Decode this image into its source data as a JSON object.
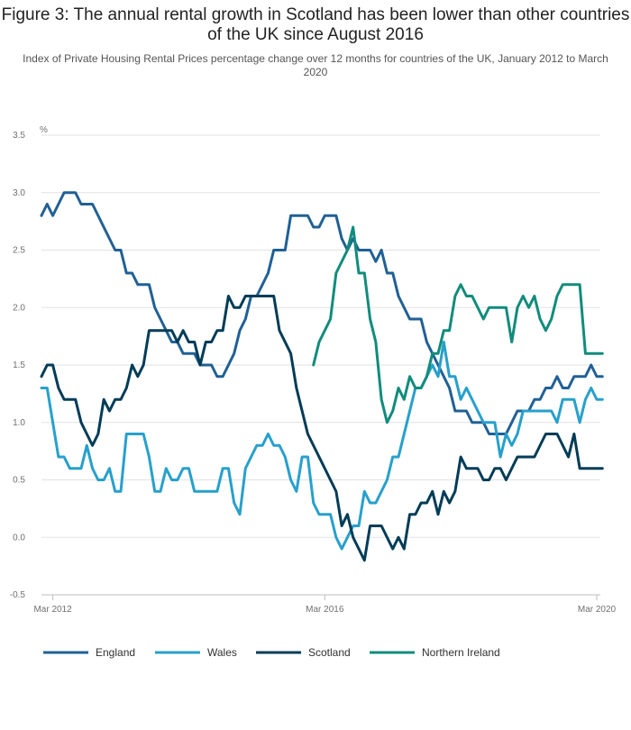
{
  "title": "Figure 3: The annual rental growth in Scotland has been lower than other countries of the UK since August 2016",
  "subtitle": "Index of Private Housing Rental Prices percentage change over 12 months for countries of the UK, January 2012 to March 2020",
  "chart_data": {
    "type": "line",
    "title": "Figure 3: The annual rental growth in Scotland has been lower than other countries of the UK since August 2016",
    "subtitle": "Index of Private Housing Rental Prices percentage change over 12 months for countries of the UK, January 2012 to March 2020",
    "ylabel": "%",
    "ylim": [
      -0.5,
      3.5
    ],
    "yticks": [
      -0.5,
      0,
      0.5,
      1,
      1.5,
      2,
      2.5,
      3,
      3.5
    ],
    "ytick_labels": [
      "-0.5",
      "0.0",
      "0.5",
      "1.0",
      "1.5",
      "2.0",
      "2.5",
      "3.0",
      "3.5"
    ],
    "x_start": "Jan 2012",
    "x_ticks": [
      {
        "label": "Mar 2012",
        "index": 2
      },
      {
        "label": "Mar 2016",
        "index": 50
      },
      {
        "label": "Mar 2020",
        "index": 98
      }
    ],
    "grid": "horizontal",
    "legend_position": "bottom",
    "series": [
      {
        "name": "England",
        "color": "#206095",
        "values": [
          2.8,
          2.9,
          2.8,
          2.9,
          3.0,
          3.0,
          3.0,
          2.9,
          2.9,
          2.9,
          2.8,
          2.7,
          2.6,
          2.5,
          2.5,
          2.3,
          2.3,
          2.2,
          2.2,
          2.2,
          2.0,
          1.9,
          1.8,
          1.7,
          1.7,
          1.6,
          1.6,
          1.6,
          1.5,
          1.5,
          1.5,
          1.4,
          1.4,
          1.5,
          1.6,
          1.8,
          1.9,
          2.1,
          2.1,
          2.2,
          2.3,
          2.5,
          2.5,
          2.5,
          2.8,
          2.8,
          2.8,
          2.8,
          2.7,
          2.7,
          2.8,
          2.8,
          2.8,
          2.6,
          2.5,
          2.6,
          2.5,
          2.5,
          2.5,
          2.4,
          2.5,
          2.3,
          2.3,
          2.1,
          2.0,
          1.9,
          1.9,
          1.9,
          1.7,
          1.6,
          1.5,
          1.4,
          1.3,
          1.1,
          1.1,
          1.1,
          1.0,
          1.0,
          1.0,
          0.9,
          0.9,
          0.9,
          0.9,
          1.0,
          1.1,
          1.1,
          1.1,
          1.2,
          1.2,
          1.3,
          1.3,
          1.4,
          1.3,
          1.3,
          1.4,
          1.4,
          1.4,
          1.5,
          1.4,
          1.4
        ]
      },
      {
        "name": "Wales",
        "color": "#27a0cc",
        "values": [
          1.3,
          1.3,
          1.0,
          0.7,
          0.7,
          0.6,
          0.6,
          0.6,
          0.8,
          0.6,
          0.5,
          0.5,
          0.6,
          0.4,
          0.4,
          0.9,
          0.9,
          0.9,
          0.9,
          0.7,
          0.4,
          0.4,
          0.6,
          0.5,
          0.5,
          0.6,
          0.6,
          0.4,
          0.4,
          0.4,
          0.4,
          0.4,
          0.6,
          0.6,
          0.3,
          0.2,
          0.6,
          0.7,
          0.8,
          0.8,
          0.9,
          0.8,
          0.8,
          0.7,
          0.5,
          0.4,
          0.7,
          0.7,
          0.3,
          0.2,
          0.2,
          0.2,
          0.0,
          -0.1,
          0.0,
          0.1,
          0.1,
          0.4,
          0.3,
          0.3,
          0.4,
          0.5,
          0.7,
          0.7,
          0.9,
          1.1,
          1.3,
          1.3,
          1.4,
          1.5,
          1.4,
          1.7,
          1.4,
          1.4,
          1.2,
          1.3,
          1.2,
          1.1,
          1.0,
          1.0,
          1.0,
          0.7,
          0.9,
          0.8,
          0.9,
          1.1,
          1.1,
          1.1,
          1.1,
          1.1,
          1.1,
          1.0,
          1.2,
          1.2,
          1.2,
          1.0,
          1.2,
          1.3,
          1.2,
          1.2
        ]
      },
      {
        "name": "Scotland",
        "color": "#003c57",
        "values": [
          1.4,
          1.5,
          1.5,
          1.3,
          1.2,
          1.2,
          1.2,
          1.0,
          0.9,
          0.8,
          0.9,
          1.2,
          1.1,
          1.2,
          1.2,
          1.3,
          1.5,
          1.4,
          1.5,
          1.8,
          1.8,
          1.8,
          1.8,
          1.8,
          1.7,
          1.8,
          1.7,
          1.7,
          1.5,
          1.7,
          1.7,
          1.8,
          1.8,
          2.1,
          2.0,
          2.0,
          2.1,
          2.1,
          2.1,
          2.1,
          2.1,
          2.1,
          1.8,
          1.7,
          1.6,
          1.3,
          1.1,
          0.9,
          0.8,
          0.7,
          0.6,
          0.5,
          0.4,
          0.1,
          0.2,
          0.0,
          -0.1,
          -0.2,
          0.1,
          0.1,
          0.1,
          0.0,
          -0.1,
          0.0,
          -0.1,
          0.2,
          0.2,
          0.3,
          0.3,
          0.4,
          0.2,
          0.4,
          0.3,
          0.4,
          0.7,
          0.6,
          0.6,
          0.6,
          0.5,
          0.5,
          0.6,
          0.6,
          0.5,
          0.6,
          0.7,
          0.7,
          0.7,
          0.7,
          0.8,
          0.9,
          0.9,
          0.9,
          0.8,
          0.7,
          0.9,
          0.6,
          0.6,
          0.6,
          0.6,
          0.6
        ]
      },
      {
        "name": "Northern Ireland",
        "color": "#118c7b",
        "start_index": 48,
        "values": [
          1.5,
          1.7,
          1.8,
          1.9,
          2.3,
          2.4,
          2.5,
          2.7,
          2.3,
          2.3,
          1.9,
          1.7,
          1.2,
          1.0,
          1.1,
          1.3,
          1.2,
          1.4,
          1.3,
          1.3,
          1.4,
          1.6,
          1.6,
          1.8,
          1.8,
          2.1,
          2.2,
          2.1,
          2.1,
          2.0,
          1.9,
          2.0,
          2.0,
          2.0,
          2.0,
          1.7,
          2.0,
          2.1,
          2.0,
          2.1,
          1.9,
          1.8,
          1.9,
          2.1,
          2.2,
          2.2,
          2.2,
          2.2,
          1.6,
          1.6,
          1.6,
          1.6
        ]
      }
    ]
  }
}
